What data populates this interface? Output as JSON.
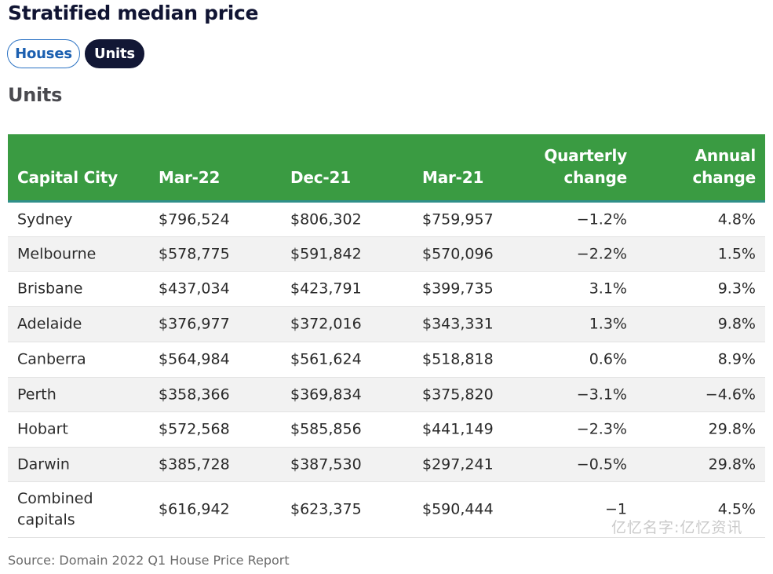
{
  "title": "Stratified median price",
  "toggle": {
    "houses": "Houses",
    "units": "Units",
    "selected": "Units"
  },
  "subtitle": "Units",
  "colors": {
    "header_bg": "#3a9b42",
    "active_pill": "#121735",
    "inactive_pill_border": "#2c73c4"
  },
  "table": {
    "headers": [
      "Capital City",
      "Mar-22",
      "Dec-21",
      "Mar-21",
      "Quarterly change",
      "Annual change"
    ],
    "rows": [
      [
        "Sydney",
        "$796,524",
        "$806,302",
        "$759,957",
        "−1.2%",
        "4.8%"
      ],
      [
        "Melbourne",
        "$578,775",
        "$591,842",
        "$570,096",
        "−2.2%",
        "1.5%"
      ],
      [
        "Brisbane",
        "$437,034",
        "$423,791",
        "$399,735",
        "3.1%",
        "9.3%"
      ],
      [
        "Adelaide",
        "$376,977",
        "$372,016",
        "$343,331",
        "1.3%",
        "9.8%"
      ],
      [
        "Canberra",
        "$564,984",
        "$561,624",
        "$518,818",
        "0.6%",
        "8.9%"
      ],
      [
        "Perth",
        "$358,366",
        "$369,834",
        "$375,820",
        "−3.1%",
        "−4.6%"
      ],
      [
        "Hobart",
        "$572,568",
        "$585,856",
        "$441,149",
        "−2.3%",
        "29.8%"
      ],
      [
        "Darwin",
        "$385,728",
        "$387,530",
        "$297,241",
        "−0.5%",
        "29.8%"
      ],
      [
        "Combined capitals",
        "$616,942",
        "$623,375",
        "$590,444",
        "−1",
        "4.5%"
      ]
    ]
  },
  "source": "Source: Domain 2022 Q1 House Price Report",
  "watermark": "亿忆名字:亿忆资讯"
}
